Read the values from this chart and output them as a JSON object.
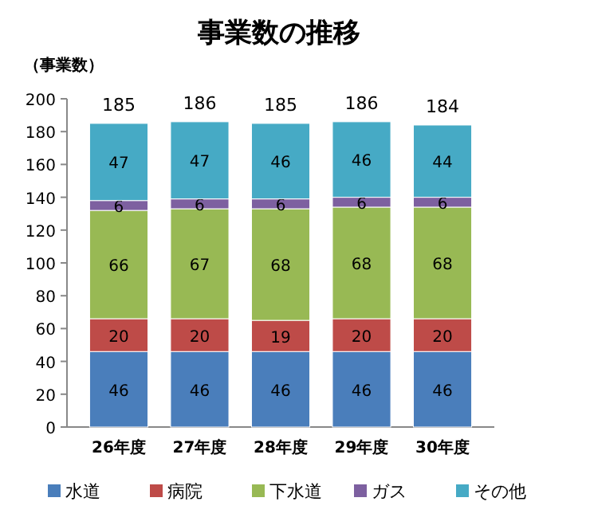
{
  "chart_data": {
    "type": "bar",
    "title": "事業数の推移",
    "ylabel": "（事業数）",
    "stacked": true,
    "categories": [
      "26年度",
      "27年度",
      "28年度",
      "29年度",
      "30年度"
    ],
    "series": [
      {
        "name": "水道",
        "color": "#4a7ebb",
        "values": [
          46,
          46,
          46,
          46,
          46
        ]
      },
      {
        "name": "病院",
        "color": "#be4b48",
        "values": [
          20,
          20,
          19,
          20,
          20
        ]
      },
      {
        "name": "下水道",
        "color": "#98b954",
        "values": [
          66,
          67,
          68,
          68,
          68
        ]
      },
      {
        "name": "ガス",
        "color": "#7d60a0",
        "values": [
          6,
          6,
          6,
          6,
          6
        ]
      },
      {
        "name": "その他",
        "color": "#46aac5",
        "values": [
          47,
          47,
          46,
          46,
          44
        ]
      }
    ],
    "totals": [
      "185",
      "186",
      "185",
      "186",
      "184"
    ],
    "ylim": [
      0,
      200
    ],
    "yticks": [
      0,
      20,
      40,
      60,
      80,
      100,
      120,
      140,
      160,
      180,
      200
    ],
    "data_labels": true,
    "legend": "bottom"
  }
}
